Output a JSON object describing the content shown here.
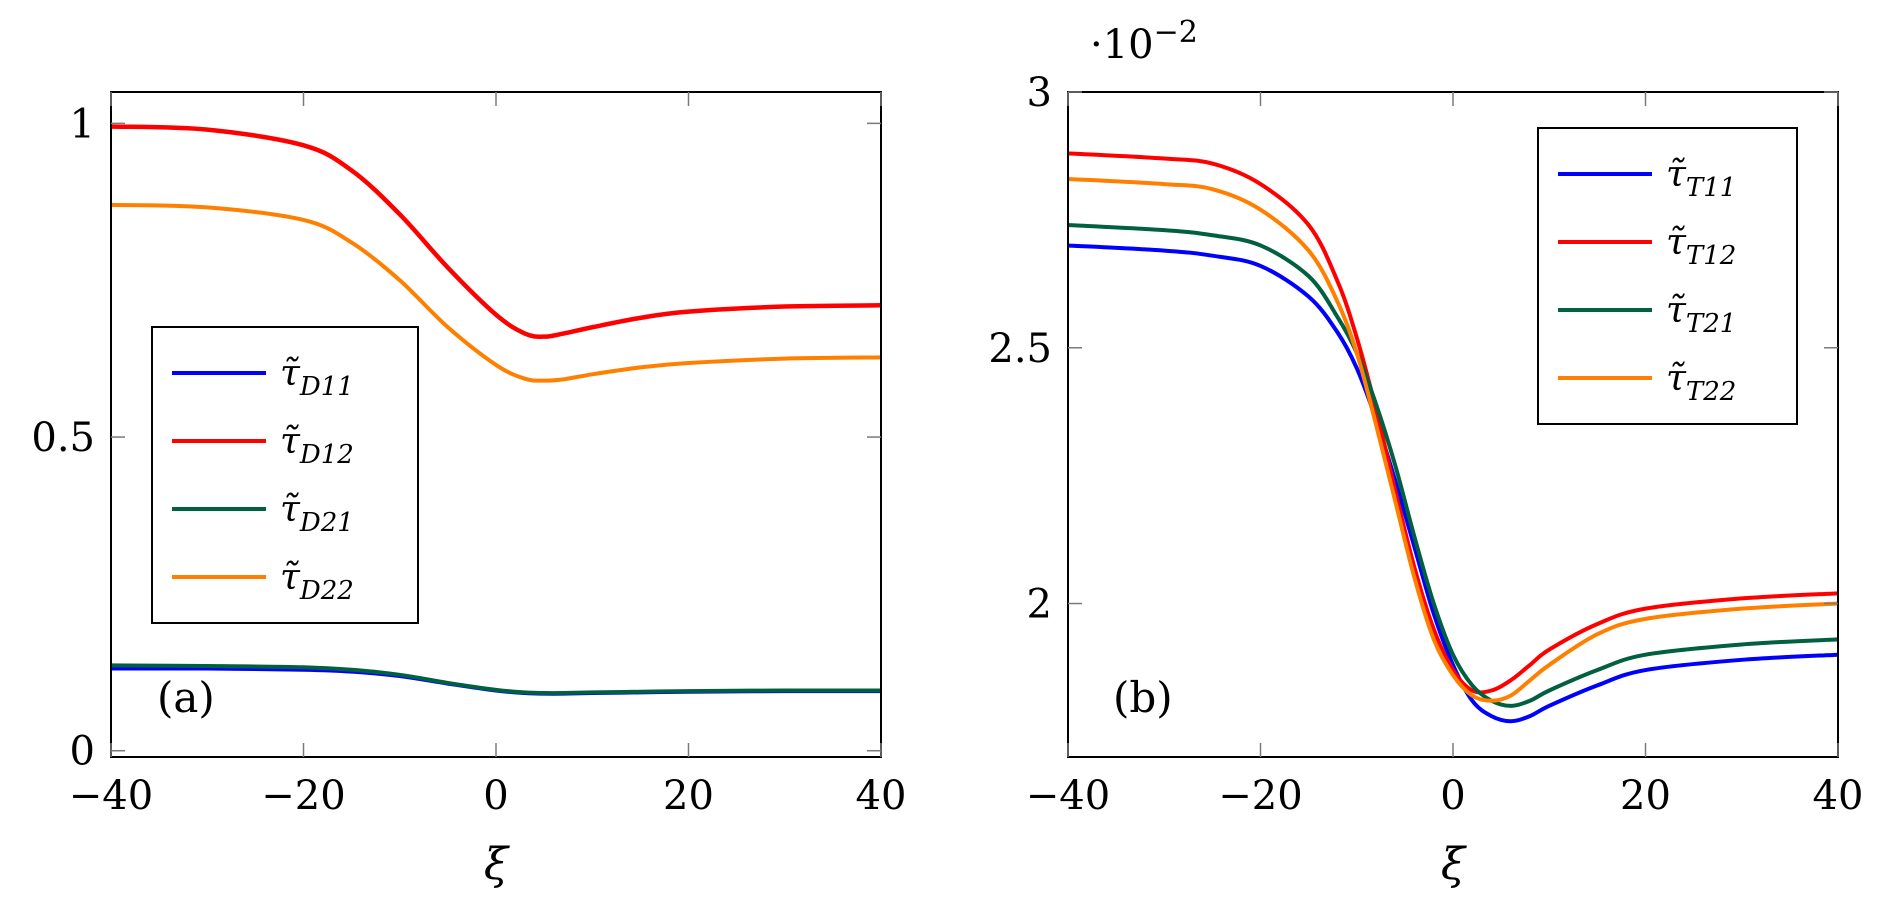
{
  "chart_data": [
    {
      "type": "line",
      "panel_label": "(a)",
      "xlabel": "ξ",
      "ylabel": "",
      "xlim": [
        -40,
        40
      ],
      "ylim": [
        -0.01,
        1.05
      ],
      "xticks": [
        -40,
        -20,
        0,
        20,
        40
      ],
      "xtick_labels": [
        "−40",
        "−20",
        "0",
        "20",
        "40"
      ],
      "yticks": [
        0,
        0.5,
        1
      ],
      "ytick_labels": [
        "0",
        "0.5",
        "1"
      ],
      "grid": false,
      "legend_position": "center-left",
      "series": [
        {
          "name": "τ̃D11",
          "base": "τ̃",
          "sub": "D11",
          "color": "#0000ff",
          "x": [
            -40,
            -30,
            -20,
            -15,
            -10,
            -5,
            0,
            3,
            5,
            7,
            10,
            15,
            20,
            30,
            40
          ],
          "y": [
            0.131,
            0.131,
            0.129,
            0.126,
            0.119,
            0.107,
            0.096,
            0.092,
            0.091,
            0.091,
            0.092,
            0.093,
            0.094,
            0.095,
            0.095
          ]
        },
        {
          "name": "τ̃D12",
          "base": "τ̃",
          "sub": "D12",
          "color": "#ff0000",
          "x": [
            -40,
            -30,
            -20,
            -15,
            -10,
            -5,
            0,
            3,
            5,
            7,
            10,
            15,
            20,
            30,
            40
          ],
          "y": [
            0.995,
            0.99,
            0.965,
            0.925,
            0.855,
            0.77,
            0.695,
            0.665,
            0.66,
            0.665,
            0.675,
            0.69,
            0.7,
            0.708,
            0.71
          ],
          "line_width": 4.5
        },
        {
          "name": "τ̃D21",
          "base": "τ̃",
          "sub": "D21",
          "color": "#006040",
          "x": [
            -40,
            -30,
            -20,
            -15,
            -10,
            -5,
            0,
            3,
            5,
            7,
            10,
            15,
            20,
            30,
            40
          ],
          "y": [
            0.136,
            0.135,
            0.133,
            0.129,
            0.121,
            0.108,
            0.097,
            0.093,
            0.092,
            0.092,
            0.093,
            0.094,
            0.095,
            0.096,
            0.096
          ]
        },
        {
          "name": "τ̃D22",
          "base": "τ̃",
          "sub": "D22",
          "color": "#ff8000",
          "x": [
            -40,
            -30,
            -20,
            -15,
            -10,
            -5,
            0,
            3,
            5,
            7,
            10,
            15,
            20,
            30,
            40
          ],
          "y": [
            0.87,
            0.866,
            0.846,
            0.81,
            0.75,
            0.675,
            0.615,
            0.593,
            0.59,
            0.592,
            0.6,
            0.611,
            0.618,
            0.625,
            0.627
          ]
        }
      ]
    },
    {
      "type": "line",
      "panel_label": "(b)",
      "xlabel": "ξ",
      "ylabel": "",
      "scale_label": "·10",
      "scale_exp": "−2",
      "xlim": [
        -40,
        40
      ],
      "ylim": [
        1.7,
        3.0
      ],
      "xticks": [
        -40,
        -20,
        0,
        20,
        40
      ],
      "xtick_labels": [
        "−40",
        "−20",
        "0",
        "20",
        "40"
      ],
      "yticks": [
        2,
        2.5,
        3
      ],
      "ytick_labels": [
        "2",
        "2.5",
        "3"
      ],
      "grid": false,
      "legend_position": "top-right",
      "series": [
        {
          "name": "τ̃T11",
          "base": "τ̃",
          "sub": "T11",
          "color": "#0000ff",
          "x": [
            -40,
            -30,
            -25,
            -20,
            -15,
            -12,
            -10,
            -8,
            -6,
            -4,
            -2,
            0,
            2,
            4,
            6,
            8,
            10,
            15,
            20,
            30,
            40
          ],
          "y": [
            2.7,
            2.69,
            2.68,
            2.66,
            2.6,
            2.53,
            2.46,
            2.36,
            2.24,
            2.11,
            1.98,
            1.88,
            1.81,
            1.78,
            1.77,
            1.78,
            1.8,
            1.84,
            1.87,
            1.89,
            1.9
          ]
        },
        {
          "name": "τ̃T12",
          "base": "τ̃",
          "sub": "T12",
          "color": "#ff0000",
          "x": [
            -40,
            -30,
            -25,
            -20,
            -15,
            -12,
            -10,
            -8,
            -6,
            -4,
            -2,
            0,
            2,
            4,
            6,
            8,
            10,
            15,
            20,
            30,
            40
          ],
          "y": [
            2.88,
            2.87,
            2.86,
            2.82,
            2.74,
            2.63,
            2.52,
            2.38,
            2.22,
            2.07,
            1.95,
            1.87,
            1.83,
            1.83,
            1.85,
            1.88,
            1.91,
            1.96,
            1.99,
            2.01,
            2.02
          ]
        },
        {
          "name": "τ̃T21",
          "base": "τ̃",
          "sub": "T21",
          "color": "#006040",
          "x": [
            -40,
            -30,
            -25,
            -20,
            -15,
            -12,
            -10,
            -8,
            -6,
            -4,
            -2,
            0,
            2,
            4,
            6,
            8,
            10,
            15,
            20,
            30,
            40
          ],
          "y": [
            2.74,
            2.73,
            2.72,
            2.7,
            2.64,
            2.56,
            2.49,
            2.39,
            2.27,
            2.13,
            2.0,
            1.9,
            1.84,
            1.81,
            1.8,
            1.81,
            1.83,
            1.87,
            1.9,
            1.92,
            1.93
          ]
        },
        {
          "name": "τ̃T22",
          "base": "τ̃",
          "sub": "T22",
          "color": "#ff8000",
          "x": [
            -40,
            -30,
            -25,
            -20,
            -15,
            -12,
            -10,
            -8,
            -6,
            -4,
            -2,
            0,
            2,
            4,
            6,
            8,
            10,
            15,
            20,
            30,
            40
          ],
          "y": [
            2.83,
            2.82,
            2.81,
            2.77,
            2.69,
            2.59,
            2.49,
            2.35,
            2.2,
            2.05,
            1.93,
            1.86,
            1.82,
            1.81,
            1.82,
            1.85,
            1.88,
            1.94,
            1.97,
            1.99,
            2.0
          ]
        }
      ]
    }
  ]
}
